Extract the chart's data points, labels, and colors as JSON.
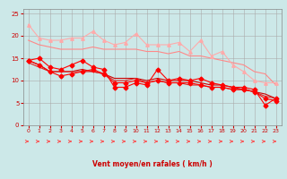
{
  "title": "",
  "xlabel": "Vent moyen/en rafales ( km/h )",
  "ylabel": "",
  "bg_color": "#cce8e8",
  "grid_color": "#aaaaaa",
  "xlim": [
    -0.5,
    23.5
  ],
  "ylim": [
    0,
    26
  ],
  "yticks": [
    0,
    5,
    10,
    15,
    20,
    25
  ],
  "xticks": [
    0,
    1,
    2,
    3,
    4,
    5,
    6,
    7,
    8,
    9,
    10,
    11,
    12,
    13,
    14,
    15,
    16,
    17,
    18,
    19,
    20,
    21,
    22,
    23
  ],
  "lines": [
    {
      "x": [
        0,
        1,
        2,
        3,
        4,
        5,
        6,
        7,
        8,
        9,
        10,
        11,
        12,
        13,
        14,
        15,
        16,
        17,
        18,
        19,
        20,
        21,
        22,
        23
      ],
      "y": [
        22.5,
        19.5,
        19.0,
        19.0,
        19.5,
        19.5,
        21.0,
        19.0,
        18.0,
        18.5,
        20.5,
        18.0,
        18.0,
        18.0,
        18.5,
        16.5,
        19.0,
        15.5,
        16.5,
        13.5,
        12.0,
        10.0,
        9.5,
        9.5
      ],
      "color": "#ffaaaa",
      "lw": 0.8,
      "marker": "^",
      "ms": 2.5,
      "zorder": 3
    },
    {
      "x": [
        0,
        1,
        2,
        3,
        4,
        5,
        6,
        7,
        8,
        9,
        10,
        11,
        12,
        13,
        14,
        15,
        16,
        17,
        18,
        19,
        20,
        21,
        22,
        23
      ],
      "y": [
        19.0,
        18.0,
        17.5,
        17.0,
        17.0,
        17.0,
        17.5,
        17.0,
        17.0,
        17.0,
        17.0,
        16.5,
        16.5,
        16.0,
        16.5,
        15.5,
        15.5,
        15.0,
        14.5,
        14.0,
        13.5,
        12.0,
        11.5,
        9.0
      ],
      "color": "#ff8888",
      "lw": 0.8,
      "marker": null,
      "ms": 0,
      "zorder": 2
    },
    {
      "x": [
        0,
        1,
        2,
        3,
        4,
        5,
        6,
        7,
        8,
        9,
        10,
        11,
        12,
        13,
        14,
        15,
        16,
        17,
        18,
        19,
        20,
        21,
        22,
        23
      ],
      "y": [
        14.5,
        15.0,
        13.0,
        12.5,
        13.5,
        14.5,
        13.0,
        12.5,
        8.5,
        8.5,
        9.5,
        9.0,
        12.5,
        10.0,
        10.5,
        10.0,
        10.5,
        9.5,
        9.0,
        8.5,
        8.5,
        8.0,
        4.5,
        6.0
      ],
      "color": "#ff0000",
      "lw": 0.8,
      "marker": "D",
      "ms": 2.5,
      "zorder": 4
    },
    {
      "x": [
        0,
        1,
        2,
        3,
        4,
        5,
        6,
        7,
        8,
        9,
        10,
        11,
        12,
        13,
        14,
        15,
        16,
        17,
        18,
        19,
        20,
        21,
        22,
        23
      ],
      "y": [
        14.5,
        13.5,
        12.0,
        12.0,
        12.0,
        12.5,
        12.0,
        11.5,
        10.5,
        10.5,
        10.5,
        10.0,
        10.5,
        10.0,
        10.0,
        10.0,
        9.5,
        9.0,
        9.0,
        8.5,
        8.0,
        7.5,
        7.0,
        6.0
      ],
      "color": "#cc0000",
      "lw": 0.8,
      "marker": null,
      "ms": 0,
      "zorder": 2
    },
    {
      "x": [
        0,
        1,
        2,
        3,
        4,
        5,
        6,
        7,
        8,
        9,
        10,
        11,
        12,
        13,
        14,
        15,
        16,
        17,
        18,
        19,
        20,
        21,
        22,
        23
      ],
      "y": [
        14.5,
        13.5,
        12.0,
        11.0,
        11.5,
        12.0,
        12.5,
        11.5,
        9.5,
        9.5,
        10.0,
        9.5,
        10.0,
        9.5,
        9.5,
        9.5,
        9.0,
        8.5,
        8.5,
        8.0,
        8.0,
        7.5,
        6.0,
        5.5
      ],
      "color": "#ff0000",
      "lw": 0.8,
      "marker": "D",
      "ms": 2.5,
      "zorder": 4
    },
    {
      "x": [
        0,
        1,
        2,
        3,
        4,
        5,
        6,
        7,
        8,
        9,
        10,
        11,
        12,
        13,
        14,
        15,
        16,
        17,
        18,
        19,
        20,
        21,
        22,
        23
      ],
      "y": [
        14.0,
        13.0,
        12.0,
        12.0,
        12.0,
        12.0,
        12.0,
        11.5,
        10.0,
        10.0,
        10.5,
        9.5,
        10.0,
        9.5,
        9.5,
        9.0,
        9.0,
        8.5,
        8.5,
        8.0,
        8.0,
        7.5,
        6.5,
        6.0
      ],
      "color": "#dd2222",
      "lw": 0.8,
      "marker": null,
      "ms": 0,
      "zorder": 2
    }
  ],
  "arrow_color": "#ff4444",
  "xlabel_color": "#cc0000",
  "tick_color": "#cc0000"
}
